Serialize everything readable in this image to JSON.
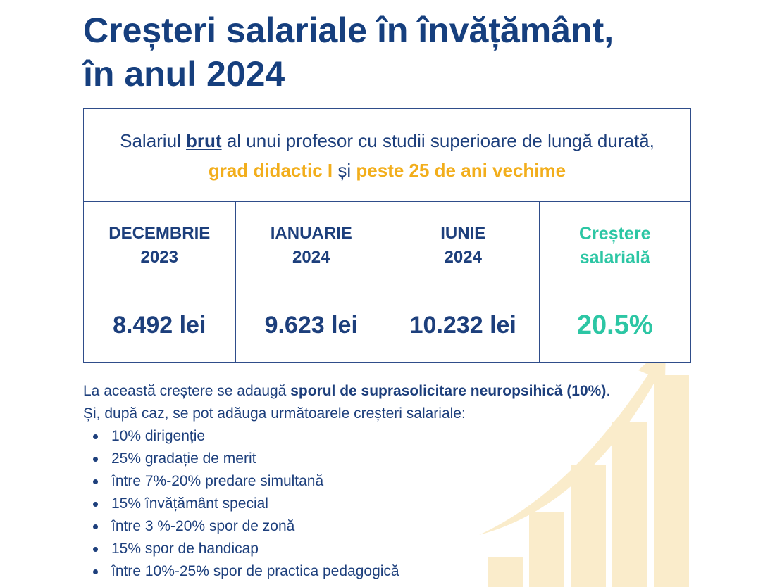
{
  "title": {
    "line1": "Creșteri salariale în învățământ,",
    "line2": "în anul 2024"
  },
  "table": {
    "header": {
      "part1": "Salariul ",
      "brut": "brut",
      "part2": " al unui profesor cu studii superioare de lungă durată, ",
      "highlight1": "grad didactic I",
      "part3": " și ",
      "highlight2": "peste 25 de ani vechime"
    },
    "columns": [
      {
        "line1": "DECEMBRIE",
        "line2": "2023",
        "value": "8.492 lei"
      },
      {
        "line1": "IANUARIE",
        "line2": "2024",
        "value": "9.623 lei"
      },
      {
        "line1": "IUNIE",
        "line2": "2024",
        "value": "10.232 lei"
      },
      {
        "line1": "Creștere",
        "line2": "salarială",
        "value": "20.5%"
      }
    ]
  },
  "notes": {
    "intro_part1": "La această creștere se adaugă ",
    "intro_bold": "sporul de suprasolicitare neuropsihică (10%)",
    "intro_part2": ".",
    "intro_line2": "Și, după caz, se pot adăuga următoarele creșteri salariale:",
    "items": [
      "10% dirigenție",
      "25% gradație de merit",
      "între 7%-20% predare simultană",
      "15% învățământ special",
      "între 3 %-20% spor de zonă",
      "15% spor de handicap",
      "între 10%-25% spor de practica pedagogică"
    ]
  },
  "colors": {
    "navy": "#163f7e",
    "accent_yellow": "#f2ae1c",
    "accent_teal": "#2cc6a4",
    "decor_cream": "#faeccb"
  },
  "decor": {
    "icon": "growth-bar-chart-arrow-icon",
    "bar_levels": [
      0.12,
      0.3,
      0.49,
      0.66,
      0.85
    ]
  }
}
